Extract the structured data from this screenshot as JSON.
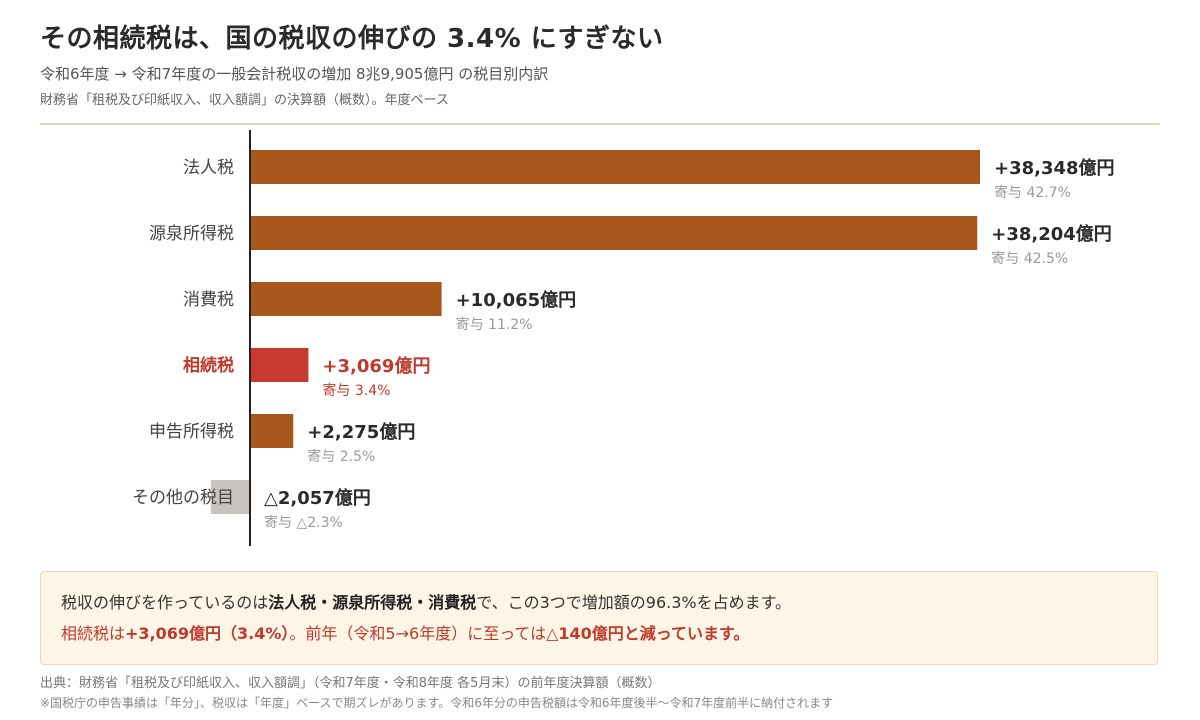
{
  "header": {
    "title": "その相続税は、国の税収の伸びの 3.4% にすぎない",
    "subtitle": "令和6年度 → 令和7年度の一般会計税収の増加 8兆9,905億円 の税目別内訳",
    "source": "財務省「租税及び印紙収入、収入額調」の決算額（概数）。年度ベース"
  },
  "colors": {
    "bar": "#a8581c",
    "highlight": "#c8392f",
    "negative": "#c8c5c0"
  },
  "chart_data": {
    "type": "bar",
    "orientation": "horizontal",
    "categories": [
      "法人税",
      "源泉所得税",
      "消費税",
      "相続税",
      "申告所得税",
      "その他の税目"
    ],
    "values": [
      38348,
      38204,
      10065,
      3069,
      2275,
      -2057
    ],
    "value_labels": [
      "+38,348億円",
      "+38,204億円",
      "+10,065億円",
      "+3,069億円",
      "+2,275億円",
      "△2,057億円"
    ],
    "share_labels": [
      "寄与 42.7%",
      "寄与 42.5%",
      "寄与 11.2%",
      "寄与 3.4%",
      "寄与 2.5%",
      "寄与 △2.3%"
    ],
    "shares": [
      42.7,
      42.5,
      11.2,
      3.4,
      2.5,
      -2.3
    ],
    "highlight_index": 3,
    "unit": "億円"
  },
  "note": {
    "line1_a": "税収の伸びを作っているのは",
    "line1_b": "法人税・源泉所得税・消費税",
    "line1_c": "で、この3つで増加額の96.3%を占めます。",
    "line2_a": "相続税は",
    "line2_b": "+3,069億円（3.4%）",
    "line2_c": "。前年（令和5→6年度）に至っては",
    "line2_d": "△140億円と減っています。"
  },
  "footer": {
    "line1": "出典：財務省「租税及び印紙収入、収入額調」（令和7年度・令和8年度 各5月末）の前年度決算額（概数）",
    "line2": "※国税庁の申告事績は「年分」、税収は「年度」ベースで期ズレがあります。令和6年分の申告税額は令和6年度後半〜令和7年度前半に納付されます"
  }
}
